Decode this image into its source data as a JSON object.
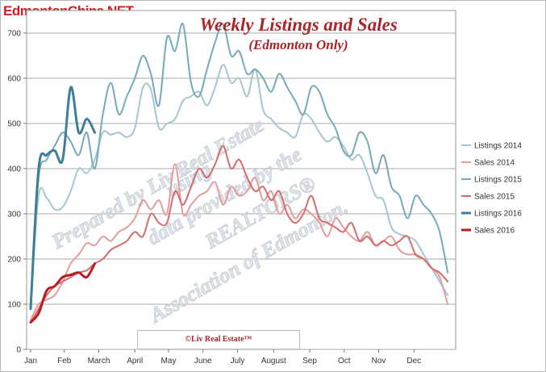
{
  "site_label": "EdmontonChina.NET",
  "copyright": "©Liv Real Estate™",
  "watermark": [
    "Prepared by Liv Real Estate",
    "using",
    "data provided by the",
    "REALTORS®",
    "Association of Edmonton."
  ],
  "chart_data": {
    "type": "line",
    "title": "Weekly Listings and Sales",
    "subtitle": "(Edmonton Only)",
    "xlabel": "",
    "ylabel": "",
    "x_tick_labels": [
      "Jan",
      "Feb",
      "March",
      "April",
      "May",
      "June",
      "July",
      "August",
      "Sep",
      "Oct",
      "Nov",
      "Dec"
    ],
    "x_tick_weeks": [
      0,
      4.2,
      8.5,
      13,
      17.2,
      21.5,
      25.8,
      30.3,
      34.8,
      39.1,
      43.4,
      47.8
    ],
    "xlim": [
      -0.5,
      53
    ],
    "ylim": [
      0,
      750
    ],
    "y_ticks": [
      0,
      100,
      200,
      300,
      400,
      500,
      600,
      700
    ],
    "grid": true,
    "legend_position": "right",
    "series": [
      {
        "name": "Listings 2014",
        "color": "#a4c6d2",
        "width": 2,
        "values": [
          90,
          340,
          335,
          310,
          315,
          350,
          400,
          390,
          420,
          480,
          475,
          480,
          470,
          490,
          580,
          575,
          490,
          500,
          510,
          550,
          560,
          570,
          540,
          580,
          630,
          590,
          600,
          560,
          620,
          530,
          510,
          490,
          480,
          470,
          520,
          510,
          480,
          460,
          470,
          450,
          420,
          430,
          390,
          340,
          330,
          270,
          255,
          250,
          240,
          210,
          180,
          150,
          120
        ]
      },
      {
        "name": "Sales 2014",
        "color": "#e59c9c",
        "width": 2,
        "values": [
          65,
          100,
          110,
          120,
          150,
          190,
          210,
          235,
          230,
          250,
          240,
          260,
          270,
          290,
          330,
          310,
          330,
          300,
          410,
          300,
          320,
          340,
          350,
          370,
          320,
          360,
          340,
          350,
          380,
          330,
          350,
          300,
          320,
          290,
          310,
          300,
          280,
          250,
          290,
          270,
          250,
          240,
          260,
          230,
          240,
          250,
          220,
          210,
          210,
          200,
          180,
          160,
          100
        ]
      },
      {
        "name": "Listings 2015",
        "color": "#76a9b9",
        "width": 2,
        "values": [
          100,
          380,
          420,
          450,
          480,
          460,
          430,
          480,
          400,
          520,
          590,
          520,
          560,
          600,
          650,
          610,
          540,
          690,
          660,
          720,
          590,
          560,
          620,
          680,
          720,
          650,
          660,
          610,
          620,
          600,
          570,
          610,
          580,
          550,
          520,
          580,
          570,
          520,
          490,
          440,
          430,
          480,
          460,
          390,
          430,
          360,
          340,
          290,
          340,
          320,
          300,
          260,
          170
        ]
      },
      {
        "name": "Sales 2015",
        "color": "#d66b6b",
        "width": 2,
        "values": [
          60,
          90,
          120,
          140,
          150,
          160,
          170,
          175,
          190,
          200,
          220,
          230,
          240,
          260,
          250,
          300,
          280,
          280,
          350,
          320,
          360,
          400,
          380,
          410,
          450,
          400,
          420,
          380,
          350,
          360,
          330,
          350,
          300,
          280,
          300,
          340,
          290,
          280,
          270,
          260,
          280,
          240,
          250,
          230,
          240,
          230,
          240,
          250,
          210,
          200,
          180,
          170,
          150
        ]
      },
      {
        "name": "Listings 2016",
        "color": "#3d7f96",
        "width": 3,
        "values": [
          90,
          400,
          430,
          440,
          420,
          580,
          480,
          510,
          480
        ]
      },
      {
        "name": "Sales 2016",
        "color": "#b81c22",
        "width": 3,
        "values": [
          60,
          80,
          130,
          140,
          160,
          165,
          170,
          160,
          190
        ]
      }
    ]
  }
}
